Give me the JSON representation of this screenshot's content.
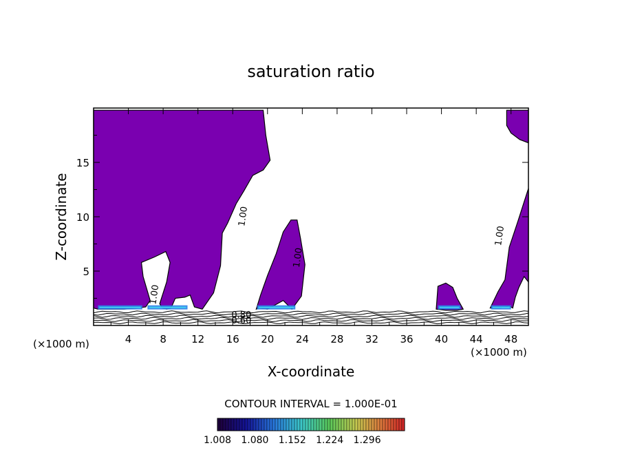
{
  "chart_data": {
    "type": "contour",
    "title": "saturation ratio",
    "xlabel": "X-coordinate",
    "ylabel": "Z-coordinate",
    "x_unit_left": "(×1000 m)",
    "x_unit_right": "(×1000 m)",
    "xlim": [
      0,
      50
    ],
    "ylim": [
      0,
      20
    ],
    "x_ticks": [
      4,
      8,
      12,
      16,
      20,
      24,
      28,
      32,
      36,
      40,
      44,
      48
    ],
    "y_ticks": [
      5,
      10,
      15
    ],
    "contour_interval_text": "CONTOUR INTERVAL = 1.000E-01",
    "colorbar": {
      "labels": [
        "1.008",
        "1.080",
        "1.152",
        "1.224",
        "1.296"
      ],
      "range": [
        1.008,
        1.368
      ]
    },
    "contour_labels": [
      {
        "text": "1.00",
        "x": 17.5,
        "z": 10.0
      },
      {
        "text": "1.00",
        "x": 23.8,
        "z": 6.2
      },
      {
        "text": "1.00",
        "x": 7.3,
        "z": 2.8
      },
      {
        "text": "1.00",
        "x": 47.0,
        "z": 8.2
      },
      {
        "text": "0.80",
        "x": 17.0,
        "z": 0.7
      },
      {
        "text": "0.60",
        "x": 17.0,
        "z": 0.2
      }
    ],
    "saturated_regions": [
      {
        "name": "west-column",
        "x": [
          0.0,
          0.0,
          19.5,
          19.8,
          20.3,
          19.5,
          18.3,
          17.3,
          16.4,
          15.4,
          14.8,
          14.6,
          13.8,
          12.5,
          11.6,
          11.1,
          10.5,
          9.4,
          8.9,
          8.4,
          7.9,
          7.6,
          8.4,
          8.8,
          8.3,
          7.0,
          5.5,
          5.7,
          6.5,
          6.0,
          5.0,
          3.5,
          2.0,
          0.5,
          0.0
        ],
        "z": [
          1.6,
          19.8,
          19.8,
          17.5,
          15.2,
          14.3,
          13.8,
          12.4,
          11.2,
          9.4,
          8.5,
          5.5,
          3.0,
          1.5,
          1.7,
          2.8,
          2.6,
          2.5,
          1.6,
          1.5,
          1.6,
          2.0,
          4.0,
          5.8,
          6.8,
          6.3,
          5.8,
          4.5,
          2.3,
          1.7,
          1.6,
          1.5,
          1.5,
          1.5,
          1.6
        ]
      },
      {
        "name": "central-tower",
        "x": [
          18.7,
          19.2,
          20.0,
          21.0,
          21.8,
          22.7,
          23.4,
          23.8,
          24.3,
          23.9,
          22.8,
          21.8,
          20.9,
          20.0,
          19.0,
          18.7
        ],
        "z": [
          1.5,
          2.8,
          4.6,
          6.6,
          8.6,
          9.7,
          9.7,
          8.0,
          5.6,
          2.7,
          1.5,
          2.3,
          1.9,
          1.5,
          1.6,
          1.5
        ]
      },
      {
        "name": "small-cell",
        "x": [
          39.4,
          39.6,
          40.5,
          41.3,
          41.8,
          42.5,
          41.8,
          40.5,
          39.4
        ],
        "z": [
          1.5,
          3.6,
          3.9,
          3.5,
          2.5,
          1.5,
          1.4,
          1.4,
          1.5
        ]
      },
      {
        "name": "east-column",
        "x": [
          45.6,
          46.5,
          47.3,
          47.8,
          48.8,
          50.0,
          50.0,
          49.5,
          48.9,
          48.5,
          48.2,
          47.8,
          46.8,
          45.6
        ],
        "z": [
          1.6,
          3.1,
          4.2,
          7.2,
          9.6,
          12.6,
          4.0,
          4.5,
          3.5,
          2.6,
          1.6,
          1.8,
          1.6,
          1.6
        ]
      },
      {
        "name": "east-top-patch",
        "x": [
          47.5,
          47.5,
          48.0,
          49.0,
          50.0,
          50.0,
          47.5
        ],
        "z": [
          19.8,
          18.4,
          17.7,
          17.1,
          16.8,
          19.8,
          19.8
        ]
      }
    ]
  }
}
